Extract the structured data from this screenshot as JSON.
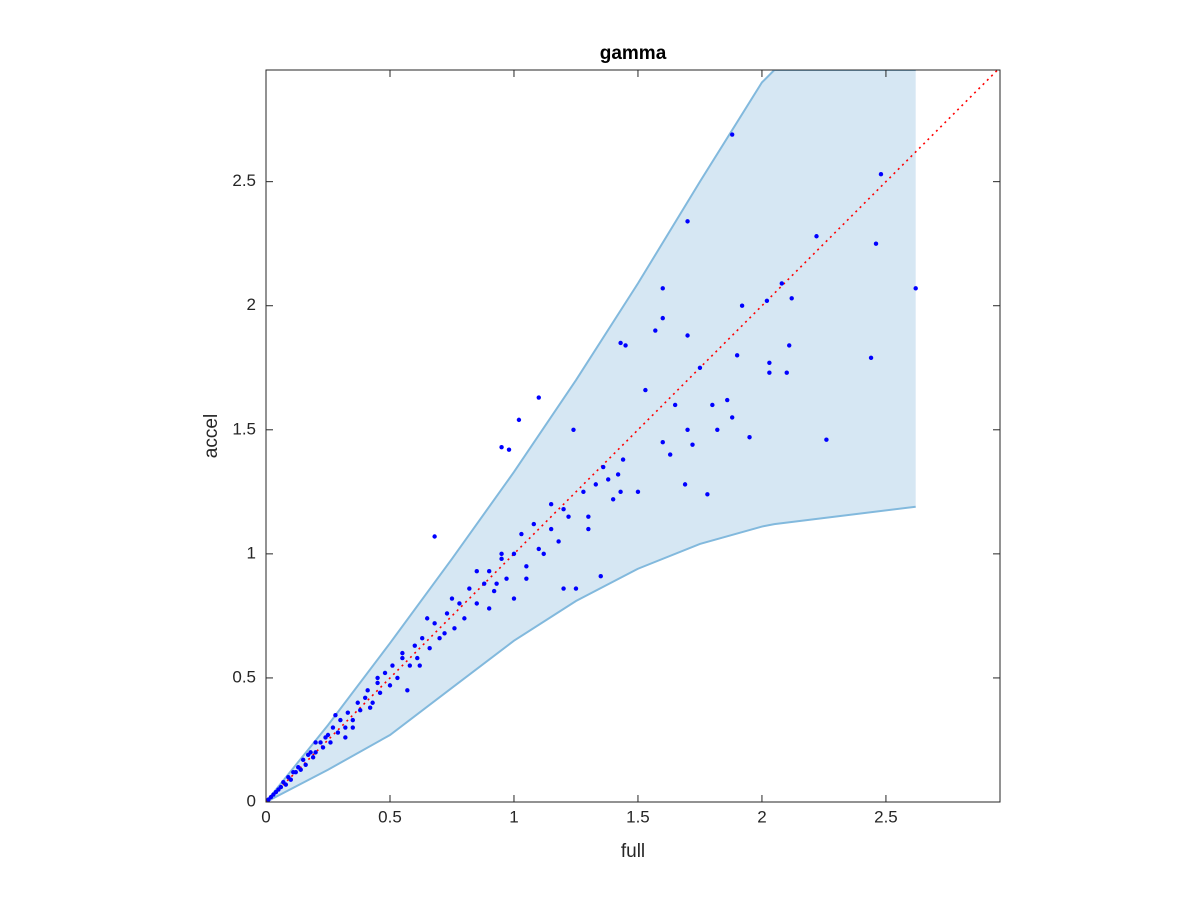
{
  "chart_data": {
    "type": "scatter",
    "title": "gamma",
    "xlabel": "full",
    "ylabel": "accel",
    "xlim": [
      0,
      2.96
    ],
    "ylim": [
      0,
      2.95
    ],
    "xticks": [
      0,
      0.5,
      1,
      1.5,
      2,
      2.5
    ],
    "yticks": [
      0,
      0.5,
      1,
      1.5,
      2,
      2.5
    ],
    "reference_line_color": "#ff0000",
    "band": {
      "fill": "#d6e7f3",
      "edge_color": "#82b9dd",
      "x": [
        0,
        0.25,
        0.5,
        0.75,
        1,
        1.25,
        1.5,
        1.75,
        2.0,
        2.05,
        2.62
      ],
      "upper": [
        0,
        0.31,
        0.64,
        0.98,
        1.33,
        1.7,
        2.09,
        2.5,
        2.9,
        2.95,
        2.95
      ],
      "lower": [
        0,
        0.13,
        0.27,
        0.46,
        0.65,
        0.81,
        0.94,
        1.04,
        1.11,
        1.12,
        1.19
      ]
    },
    "points": {
      "color": "#0000ff",
      "x": [
        1.88,
        1.7,
        2.48,
        2.22,
        2.46,
        2.62,
        2.44,
        2.26,
        1.6,
        1.57,
        1.6,
        1.43,
        1.45,
        1.7,
        1.92,
        2.02,
        2.08,
        2.12,
        1.9,
        2.03,
        2.11,
        2.1,
        2.03,
        1.95,
        1.78,
        1.69,
        1.5,
        1.53,
        1.1,
        1.02,
        0.95,
        0.98,
        1.24,
        0.68,
        1.25,
        1.35,
        1.82,
        1.86,
        1.8,
        1.75,
        1.88,
        1.65,
        1.63,
        1.72,
        1.7,
        1.6,
        0.57,
        1.2,
        1.0,
        1.44,
        1.42,
        1.4,
        1.38,
        1.33,
        1.3,
        1.28,
        1.22,
        1.18,
        1.15,
        1.12,
        1.08,
        1.05,
        1.03,
        1.0,
        0.97,
        0.95,
        0.92,
        0.9,
        0.88,
        0.85,
        0.82,
        0.8,
        0.78,
        0.76,
        0.73,
        0.7,
        0.68,
        0.66,
        0.63,
        0.61,
        0.6,
        0.58,
        0.55,
        0.53,
        0.51,
        0.5,
        0.48,
        0.46,
        0.45,
        0.43,
        0.41,
        0.4,
        0.38,
        0.37,
        0.35,
        0.33,
        0.32,
        0.3,
        0.29,
        0.27,
        0.26,
        0.25,
        0.23,
        0.22,
        0.2,
        0.19,
        0.18,
        0.16,
        0.15,
        0.14,
        0.12,
        0.11,
        0.1,
        0.09,
        0.08,
        0.07,
        0.06,
        0.05,
        0.04,
        0.03,
        0.02,
        0.01,
        1.1,
        1.15,
        1.2,
        0.9,
        0.95,
        0.75,
        0.65,
        0.55,
        0.45,
        0.35,
        0.28,
        0.2,
        1.3,
        1.36,
        1.43,
        0.85,
        0.62,
        0.42,
        0.32,
        0.24,
        0.17,
        0.13,
        1.05,
        0.93,
        0.72
      ],
      "y": [
        2.69,
        2.34,
        2.53,
        2.28,
        2.25,
        2.07,
        1.79,
        1.46,
        2.07,
        1.9,
        1.95,
        1.85,
        1.84,
        1.88,
        2.0,
        2.02,
        2.09,
        2.03,
        1.8,
        1.77,
        1.84,
        1.73,
        1.73,
        1.47,
        1.24,
        1.28,
        1.25,
        1.66,
        1.63,
        1.54,
        1.43,
        1.42,
        1.5,
        1.07,
        0.86,
        0.91,
        1.5,
        1.62,
        1.6,
        1.75,
        1.55,
        1.6,
        1.4,
        1.44,
        1.5,
        1.45,
        0.45,
        0.86,
        0.82,
        1.38,
        1.32,
        1.22,
        1.3,
        1.28,
        1.1,
        1.25,
        1.15,
        1.05,
        1.2,
        1.0,
        1.12,
        0.95,
        1.08,
        1.0,
        0.9,
        0.98,
        0.85,
        0.93,
        0.88,
        0.8,
        0.86,
        0.74,
        0.8,
        0.7,
        0.76,
        0.66,
        0.72,
        0.62,
        0.66,
        0.58,
        0.63,
        0.55,
        0.58,
        0.5,
        0.55,
        0.47,
        0.52,
        0.44,
        0.48,
        0.4,
        0.45,
        0.42,
        0.37,
        0.4,
        0.33,
        0.36,
        0.3,
        0.33,
        0.28,
        0.3,
        0.24,
        0.27,
        0.22,
        0.24,
        0.2,
        0.18,
        0.2,
        0.15,
        0.17,
        0.13,
        0.12,
        0.12,
        0.09,
        0.1,
        0.07,
        0.08,
        0.06,
        0.05,
        0.04,
        0.03,
        0.02,
        0.01,
        1.02,
        1.1,
        1.18,
        0.78,
        1.0,
        0.82,
        0.74,
        0.6,
        0.5,
        0.3,
        0.35,
        0.24,
        1.15,
        1.35,
        1.25,
        0.93,
        0.55,
        0.38,
        0.26,
        0.26,
        0.19,
        0.14,
        0.9,
        0.88,
        0.68
      ]
    }
  }
}
